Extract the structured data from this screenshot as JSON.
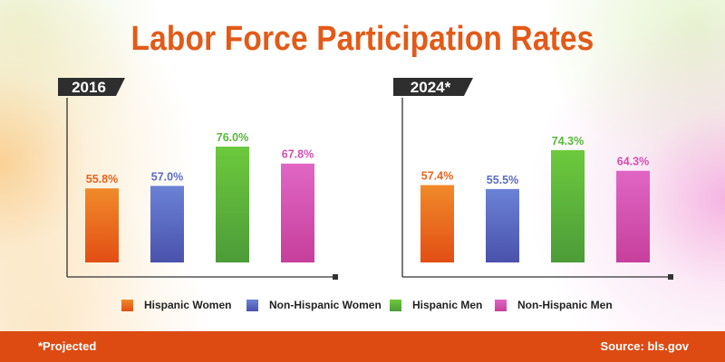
{
  "title": "Labor Force Participation Rates",
  "series_colors": {
    "Hispanic Women": "#e8641c",
    "Non-Hispanic Women": "#5a6cc4",
    "Hispanic Men": "#57b83a",
    "Non-Hispanic Men": "#d24fb0"
  },
  "legend": [
    "Hispanic Women",
    "Non-Hispanic Women",
    "Hispanic Men",
    "Non-Hispanic Men"
  ],
  "chart_data": [
    {
      "type": "bar",
      "title": "2016",
      "categories": [
        "Hispanic Women",
        "Non-Hispanic Women",
        "Hispanic Men",
        "Non-Hispanic Men"
      ],
      "values": [
        55.8,
        57.0,
        76.0,
        67.8
      ],
      "labels": [
        "55.8%",
        "57.0%",
        "76.0%",
        "67.8%"
      ],
      "ylim": [
        20,
        85
      ],
      "grid": false,
      "legend_position": "bottom"
    },
    {
      "type": "bar",
      "title": "2024*",
      "categories": [
        "Hispanic Women",
        "Non-Hispanic Women",
        "Hispanic Men",
        "Non-Hispanic Men"
      ],
      "values": [
        57.4,
        55.5,
        74.3,
        64.3
      ],
      "labels": [
        "57.4%",
        "55.5%",
        "74.3%",
        "64.3%"
      ],
      "ylim": [
        20,
        85
      ],
      "grid": false,
      "legend_position": "bottom"
    }
  ],
  "footer": {
    "note": "*Projected",
    "source": "Source: bls.gov"
  }
}
